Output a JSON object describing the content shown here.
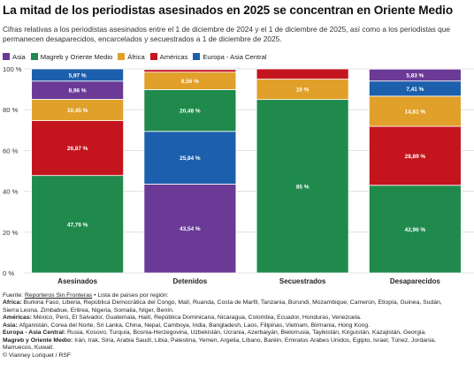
{
  "title": "La mitad de los periodistas asesinados en 2025 se concentran en Oriente Medio",
  "subtitle_lines": [
    "Cifras relativas a los periodistas asesinados entre el 1 de diciembre de 2024 y el 1 de diciembre de 2025, así como a los periodistas que",
    "permanecen desaparecidos, encarcelados y secuestrados a 1 de diciembre de 2025."
  ],
  "colors": {
    "Asia": "#6a3a96",
    "Magreb y Oriente Medio": "#1f8a4c",
    "África": "#e0a02a",
    "Américas": "#c4141d",
    "Europa - Asia Central": "#1c5fac"
  },
  "chart_data": {
    "type": "bar",
    "stacked": true,
    "categories": [
      "Asesinados",
      "Detenidos",
      "Secuestrados",
      "Desaparecidos"
    ],
    "ylim": [
      0,
      100
    ],
    "yticks": [
      "0 %",
      "20 %",
      "40 %",
      "60 %",
      "80 %",
      "100 %"
    ],
    "yticks_values": [
      0,
      20,
      40,
      60,
      80,
      100
    ],
    "grid": true,
    "legend_position": "top-left",
    "series": [
      {
        "name": "Asia",
        "values": [
          8.96,
          43.54,
          0,
          5.83
        ],
        "labels": [
          "8,96 %",
          "43,54 %",
          "",
          "5,83 %"
        ]
      },
      {
        "name": "Magreb y Oriente Medio",
        "values": [
          47.76,
          20.48,
          85,
          42.96
        ],
        "labels": [
          "47,76 %",
          "20,48 %",
          "85 %",
          "42,96 %"
        ]
      },
      {
        "name": "África",
        "values": [
          10.45,
          8.56,
          10,
          14.81
        ],
        "labels": [
          "10,45 %",
          "8,56 %",
          "10 %",
          "14,81 %"
        ]
      },
      {
        "name": "Américas",
        "values": [
          26.87,
          1.24,
          5,
          28.89
        ],
        "labels": [
          "26,87 %",
          "",
          "",
          "28,89 %"
        ]
      },
      {
        "name": "Europa - Asia Central",
        "values": [
          5.97,
          25.84,
          0,
          7.41
        ],
        "labels": [
          "5,97 %",
          "25,84 %",
          "",
          "7,41 %"
        ]
      }
    ],
    "stack_order": [
      "Magreb y Oriente Medio",
      "Asia",
      "Europa - Asia Central",
      "Américas",
      "África"
    ],
    "stack_orders": [
      [
        "Magreb y Oriente Medio",
        "Américas",
        "África",
        "Asia",
        "Europa - Asia Central"
      ],
      [
        "Asia",
        "Europa - Asia Central",
        "Magreb y Oriente Medio",
        "África",
        "Américas"
      ],
      [
        "Magreb y Oriente Medio",
        "África",
        "Américas"
      ],
      [
        "Magreb y Oriente Medio",
        "Américas",
        "África",
        "Europa - Asia Central",
        "Asia"
      ]
    ]
  },
  "notes": {
    "source_label": "Fuente: ",
    "source_link": "Reporteros Sin Fronteras",
    "source_rest": " • Lista de países por región:",
    "regions": [
      {
        "name": "África: ",
        "countries": "Burkina Faso, Liberia, República Democrática del Congo, Malí, Ruanda, Costa de Marfil, Tanzania, Burundi, Mozambique, Camerún, Etiopía, Guinea, Sudán,"
      },
      {
        "name": "",
        "countries": "Sierra Leona, Zimbabue, Eritrea, Nigeria, Somalia, Níger, Benín."
      },
      {
        "name": "Américas: ",
        "countries": "México, Perú, El Salvador, Guatemala, Haití, República Dominicana, Nicaragua, Colombia, Ecuador, Honduras, Venezuela."
      },
      {
        "name": "Asia: ",
        "countries": "Afganistán, Corea del Norte, Sri Lanka, China, Nepal, Camboya, India, Bangladesh, Laos, Filipinas, Vietnam, Birmania, Hong Kong."
      },
      {
        "name": "Europa - Asia Central: ",
        "countries": "Rusia, Kosovo, Turquía, Bosnia-Herzegovina, Uzbekistán, Ucrania, Azerbaiyán, Bielorrusia, Tayikistán, Kirguistán, Kazajistán, Georgia."
      },
      {
        "name": "Magreb y Oriente Medio: ",
        "countries": "Irán, Irak, Siria, Arabia Saudí, Libia, Palestina, Yemen, Argelia, Líbano, Baréin, Emiratos Árabes Unidos, Egipto, Israel, Túnez, Jordania,"
      },
      {
        "name": "",
        "countries": "Marruecos, Kuwait."
      }
    ],
    "credit": "© Vianney Loriquet / RSF"
  }
}
